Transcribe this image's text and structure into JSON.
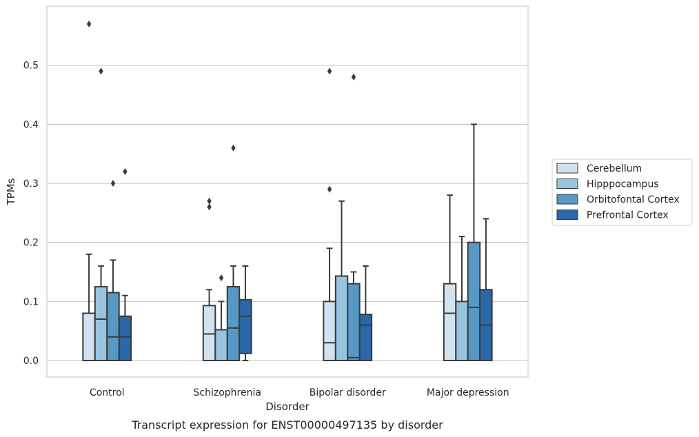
{
  "chart_data": {
    "type": "box",
    "xlabel": "Disorder",
    "ylabel": "TPMs",
    "caption": "Transcript expression for ENST00000497135 by disorder",
    "ylim": [
      -0.028,
      0.6
    ],
    "yticks": [
      0.0,
      0.1,
      0.2,
      0.3,
      0.4,
      0.5
    ],
    "ytick_labels": [
      "0.0",
      "0.1",
      "0.2",
      "0.3",
      "0.4",
      "0.5"
    ],
    "grid": "horizontal",
    "legend_position": "right",
    "categories": [
      "Control",
      "Schizophrenia",
      "Bipolar disorder",
      "Major depression"
    ],
    "series": [
      {
        "name": "Cerebellum",
        "color": "#d2e2f0",
        "boxes": [
          {
            "whislo": 0.0,
            "q1": 0.0,
            "med": 0.0,
            "q3": 0.08,
            "whishi": 0.18,
            "fliers": [
              0.57
            ]
          },
          {
            "whislo": 0.0,
            "q1": 0.0,
            "med": 0.045,
            "q3": 0.093,
            "whishi": 0.12,
            "fliers": [
              0.26,
              0.27
            ]
          },
          {
            "whislo": 0.0,
            "q1": 0.0,
            "med": 0.03,
            "q3": 0.1,
            "whishi": 0.19,
            "fliers": [
              0.29,
              0.49
            ]
          },
          {
            "whislo": 0.0,
            "q1": 0.0,
            "med": 0.08,
            "q3": 0.13,
            "whishi": 0.28,
            "fliers": []
          }
        ]
      },
      {
        "name": "Hipppocampus",
        "color": "#98c4dd",
        "boxes": [
          {
            "whislo": 0.0,
            "q1": 0.0,
            "med": 0.07,
            "q3": 0.125,
            "whishi": 0.16,
            "fliers": [
              0.49
            ]
          },
          {
            "whislo": 0.0,
            "q1": 0.0,
            "med": 0.0,
            "q3": 0.052,
            "whishi": 0.1,
            "fliers": [
              0.14
            ]
          },
          {
            "whislo": 0.0,
            "q1": 0.0,
            "med": 0.0,
            "q3": 0.143,
            "whishi": 0.27,
            "fliers": []
          },
          {
            "whislo": 0.0,
            "q1": 0.0,
            "med": 0.0,
            "q3": 0.1,
            "whishi": 0.21,
            "fliers": []
          }
        ]
      },
      {
        "name": "Orbitofontal Cortex",
        "color": "#5898c5",
        "boxes": [
          {
            "whislo": 0.0,
            "q1": 0.0,
            "med": 0.04,
            "q3": 0.115,
            "whishi": 0.17,
            "fliers": [
              0.3
            ]
          },
          {
            "whislo": 0.0,
            "q1": 0.0,
            "med": 0.055,
            "q3": 0.125,
            "whishi": 0.16,
            "fliers": [
              0.36
            ]
          },
          {
            "whislo": 0.0,
            "q1": 0.0,
            "med": 0.005,
            "q3": 0.13,
            "whishi": 0.15,
            "fliers": [
              0.48
            ]
          },
          {
            "whislo": 0.0,
            "q1": 0.0,
            "med": 0.09,
            "q3": 0.2,
            "whishi": 0.4,
            "fliers": []
          }
        ]
      },
      {
        "name": "Prefrontal Cortex",
        "color": "#2a68a7",
        "boxes": [
          {
            "whislo": 0.0,
            "q1": 0.0,
            "med": 0.04,
            "q3": 0.075,
            "whishi": 0.11,
            "fliers": [
              0.32
            ]
          },
          {
            "whislo": 0.0,
            "q1": 0.012,
            "med": 0.075,
            "q3": 0.103,
            "whishi": 0.16,
            "fliers": []
          },
          {
            "whislo": 0.0,
            "q1": 0.0,
            "med": 0.06,
            "q3": 0.078,
            "whishi": 0.16,
            "fliers": []
          },
          {
            "whislo": 0.0,
            "q1": 0.0,
            "med": 0.06,
            "q3": 0.12,
            "whishi": 0.24,
            "fliers": []
          }
        ]
      }
    ]
  }
}
